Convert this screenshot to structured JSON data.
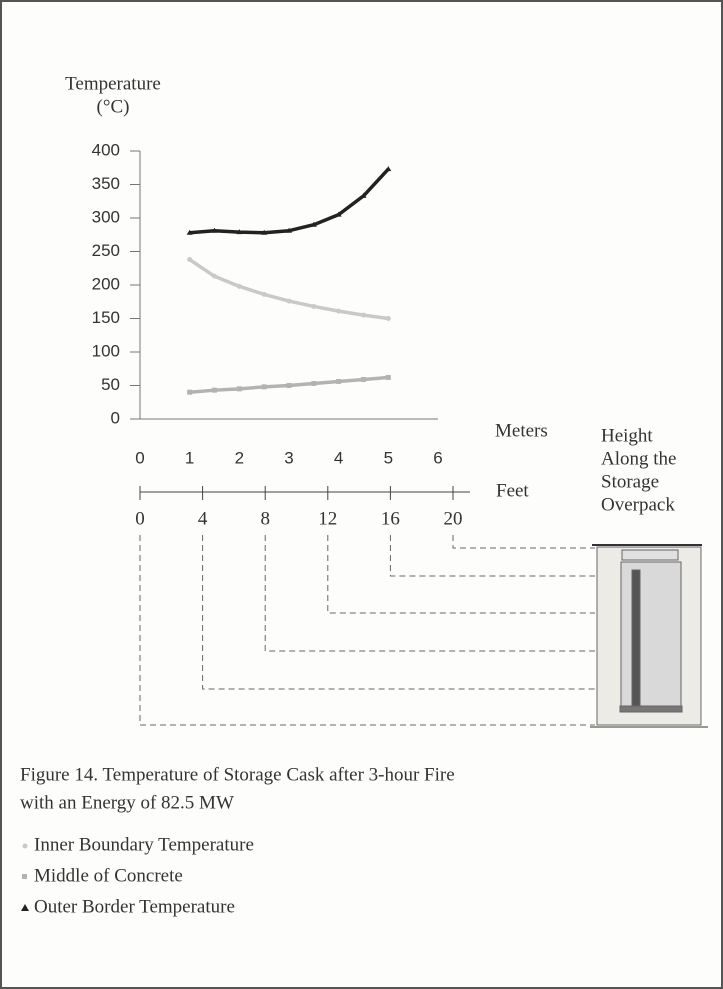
{
  "chart_data": {
    "type": "line",
    "ylabel": [
      "Temperature",
      "(°C)"
    ],
    "xlabel": "Meters",
    "x2label": "Feet",
    "annotation": [
      "Height",
      "Along the",
      "Storage",
      "Overpack"
    ],
    "caption": [
      "Figure 14.  Temperature of Storage Cask after 3-hour Fire",
      "with an Energy of 82.5 MW"
    ],
    "x": [
      1,
      1.5,
      2,
      2.5,
      3,
      3.5,
      4,
      4.5,
      5
    ],
    "series": [
      {
        "name": "Inner Boundary Temperature",
        "color": "#c9c9c9",
        "marker": "circle",
        "values": [
          238,
          213,
          198,
          186,
          176,
          168,
          161,
          155,
          150
        ]
      },
      {
        "name": "Middle of Concrete",
        "color": "#b3b3b3",
        "marker": "square",
        "values": [
          40,
          43,
          45,
          48,
          50,
          53,
          56,
          59,
          62
        ]
      },
      {
        "name": "Outer Border Temperature",
        "color": "#222222",
        "marker": "triangle",
        "values": [
          278,
          281,
          279,
          278,
          281,
          290,
          305,
          333,
          373
        ]
      }
    ],
    "xlim": [
      0,
      6
    ],
    "xticks": [
      0,
      1,
      2,
      3,
      4,
      5,
      6
    ],
    "ylim": [
      0,
      400
    ],
    "yticks": [
      0,
      50,
      100,
      150,
      200,
      250,
      300,
      350,
      400
    ],
    "x2lim": [
      0,
      20
    ],
    "x2ticks": [
      0,
      4,
      8,
      12,
      16,
      20
    ]
  }
}
